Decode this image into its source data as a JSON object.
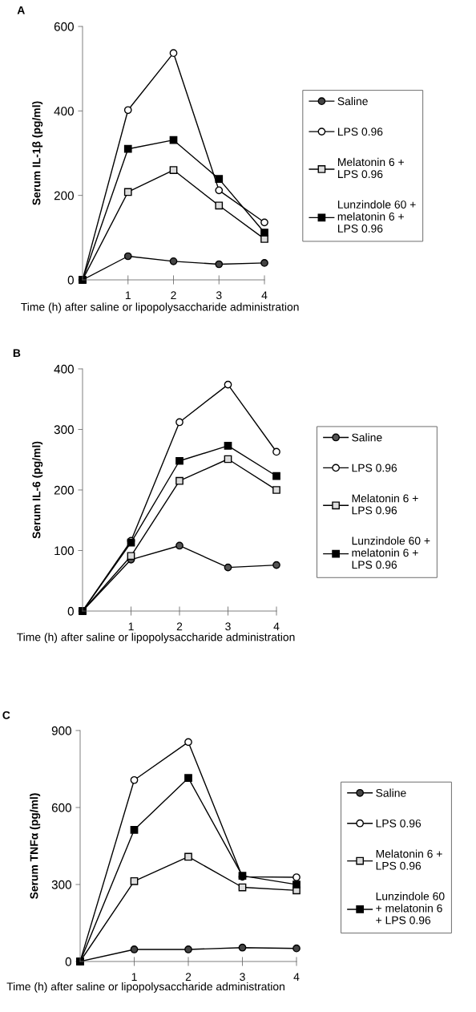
{
  "chart_data": [
    {
      "type": "line",
      "title": "A",
      "xlabel": "Time (h) after saline or lipopolysaccharide administration",
      "ylabel": "Serum IL-1β (pg/ml)",
      "x": [
        0,
        1,
        2,
        3,
        4
      ],
      "xlim": [
        0,
        4
      ],
      "xticks": [
        1,
        2,
        3,
        4
      ],
      "ylim": [
        0,
        600
      ],
      "yticks": [
        0,
        200,
        400,
        600
      ],
      "grid": false,
      "legend": "right",
      "line_style": "solid",
      "series": [
        {
          "name": "Saline",
          "color": "#444444",
          "marker": "circle",
          "values": [
            0,
            56,
            44,
            37,
            40
          ]
        },
        {
          "name": "LPS 0.96",
          "color": "#ffffff",
          "marker": "circle",
          "values": [
            0,
            402,
            537,
            212,
            136
          ]
        },
        {
          "name": "Melatonin 6 +\nLPS 0.96",
          "color": "#dddddd",
          "marker": "square",
          "values": [
            0,
            208,
            260,
            176,
            97
          ]
        },
        {
          "name": "Lunzindole 60 +\nmelatonin 6 +\nLPS 0.96",
          "color": "#000000",
          "marker": "square",
          "values": [
            0,
            310,
            331,
            239,
            112
          ]
        }
      ]
    },
    {
      "type": "line",
      "title": "B",
      "xlabel": "Time (h) after saline or lipopolysaccharide administration",
      "ylabel": "Serum IL-6 (pg/ml)",
      "x": [
        0,
        1,
        2,
        3,
        4
      ],
      "xlim": [
        0,
        4
      ],
      "xticks": [
        1,
        2,
        3,
        4
      ],
      "ylim": [
        0,
        400
      ],
      "yticks": [
        0,
        100,
        200,
        300,
        400
      ],
      "grid": false,
      "legend": "right",
      "line_style": "solid",
      "series": [
        {
          "name": "Saline",
          "color": "#555555",
          "marker": "circle",
          "values": [
            0,
            85,
            108,
            72,
            76
          ]
        },
        {
          "name": "LPS 0.96",
          "color": "#ffffff",
          "marker": "circle",
          "values": [
            0,
            116,
            312,
            374,
            263
          ]
        },
        {
          "name": "Melatonin 6 +\nLPS 0.96",
          "color": "#dddddd",
          "marker": "square",
          "values": [
            0,
            91,
            215,
            251,
            200
          ]
        },
        {
          "name": "Lunzindole 60 +\nmelatonin 6 +\nLPS 0.96",
          "color": "#000000",
          "marker": "square",
          "values": [
            0,
            113,
            248,
            273,
            223
          ]
        }
      ]
    },
    {
      "type": "line",
      "title": "C",
      "xlabel": "Time (h) after saline or lipopolysaccharide administration",
      "ylabel": "Serum TNFα (pg/ml)",
      "x": [
        0,
        1,
        2,
        3,
        4
      ],
      "xlim": [
        0,
        4
      ],
      "xticks": [
        1,
        2,
        3,
        4
      ],
      "ylim": [
        0,
        900
      ],
      "yticks": [
        0,
        300,
        600,
        900
      ],
      "grid": false,
      "legend": "right",
      "line_style": "solid",
      "series": [
        {
          "name": "Saline",
          "color": "#444444",
          "marker": "circle",
          "values": [
            0,
            47,
            47,
            54,
            51
          ]
        },
        {
          "name": "LPS 0.96",
          "color": "#ffffff",
          "marker": "circle",
          "values": [
            0,
            707,
            855,
            330,
            328
          ]
        },
        {
          "name": "Melatonin 6 +\nLPS 0.96",
          "color": "#dddddd",
          "marker": "square",
          "values": [
            0,
            313,
            408,
            289,
            277
          ]
        },
        {
          "name": "Lunzindole 60\n+ melatonin 6\n+ LPS 0.96",
          "color": "#000000",
          "marker": "square",
          "values": [
            0,
            513,
            715,
            334,
            300
          ]
        }
      ]
    }
  ]
}
